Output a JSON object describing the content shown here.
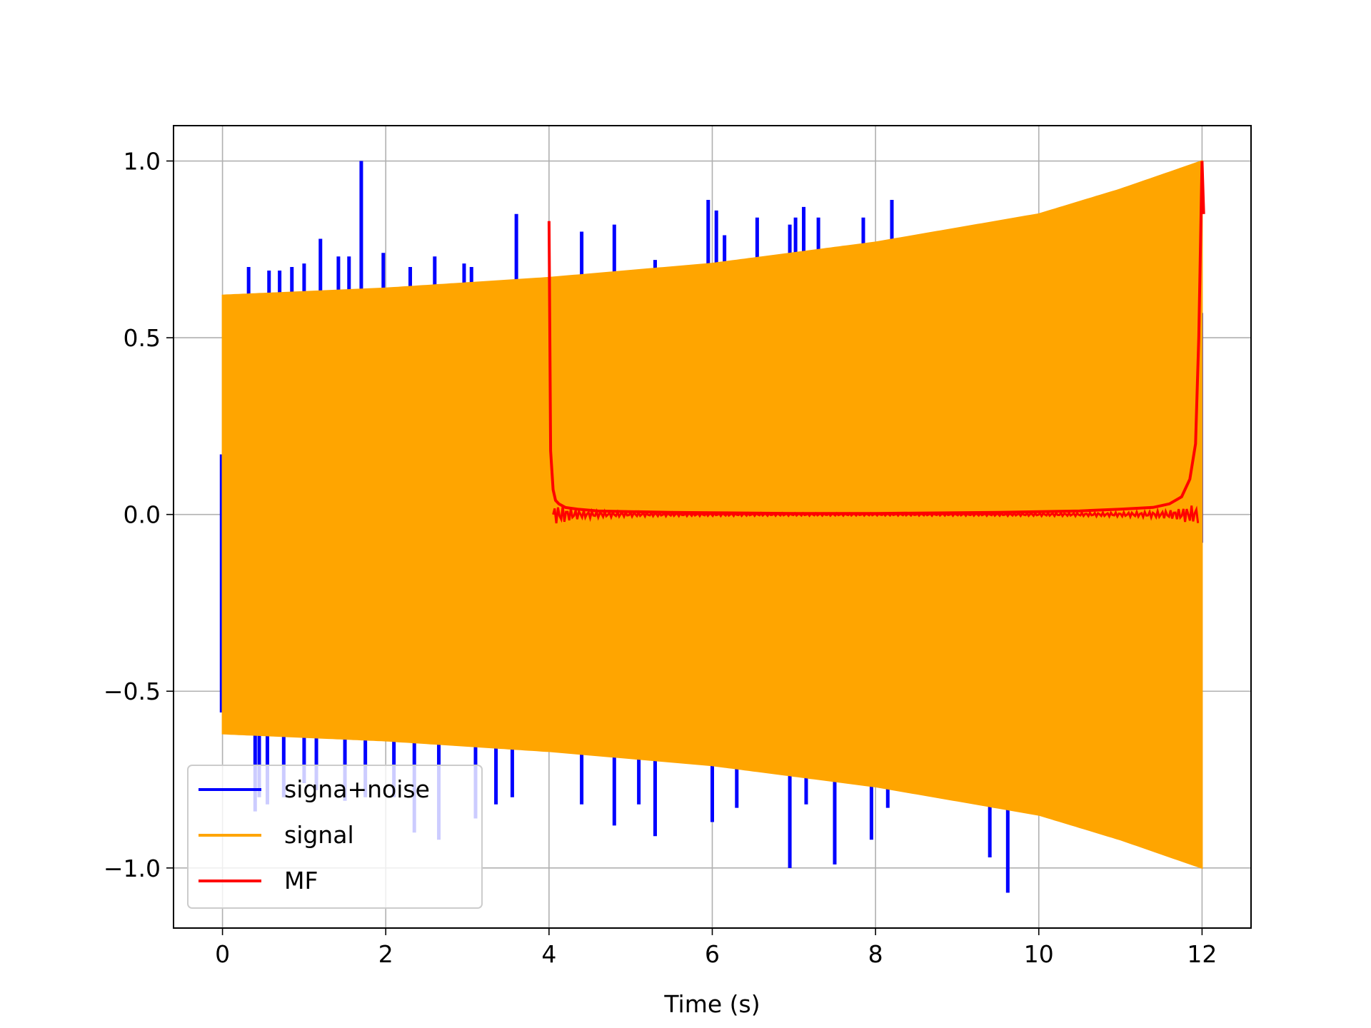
{
  "chart_data": {
    "type": "line",
    "title": "",
    "xlabel": "Time (s)",
    "ylabel": "",
    "xlim": [
      -0.6,
      12.6
    ],
    "ylim": [
      -1.17,
      1.1
    ],
    "grid": true,
    "legend_position": "lower-left",
    "x_ticks": [
      0,
      2,
      4,
      6,
      8,
      10,
      12
    ],
    "x_tick_labels": [
      "0",
      "2",
      "4",
      "6",
      "8",
      "10",
      "12"
    ],
    "y_ticks": [
      1.0,
      0.5,
      0.0,
      -0.5,
      -1.0
    ],
    "y_tick_labels": [
      "1.0",
      "0.5",
      "0.0",
      "−0.5",
      "−1.0"
    ],
    "series": [
      {
        "name": "signa+noise",
        "color": "#0000ff",
        "style": "impulses",
        "x": [
          0.32,
          0.57,
          0.7,
          0.85,
          1.0,
          1.2,
          1.42,
          1.55,
          1.7,
          1.97,
          2.3,
          2.6,
          2.96,
          3.05,
          3.6,
          4.4,
          4.8,
          5.3,
          5.95,
          6.05,
          6.15,
          6.55,
          6.95,
          7.02,
          7.12,
          7.3,
          7.85,
          8.2
        ],
        "y": [
          0.7,
          0.69,
          0.69,
          0.7,
          0.71,
          0.78,
          0.73,
          0.73,
          1.0,
          0.74,
          0.7,
          0.73,
          0.71,
          0.7,
          0.85,
          0.8,
          0.82,
          0.72,
          0.89,
          0.86,
          0.79,
          0.84,
          0.82,
          0.84,
          0.87,
          0.84,
          0.84,
          0.89
        ],
        "x_neg": [
          0.4,
          0.45,
          0.55,
          0.75,
          1.0,
          1.15,
          1.5,
          1.75,
          2.1,
          2.35,
          2.65,
          3.1,
          3.35,
          3.55,
          4.4,
          4.8,
          5.1,
          5.3,
          6.0,
          6.3,
          6.95,
          7.15,
          7.5,
          7.95,
          8.15,
          9.4,
          9.62
        ],
        "y_neg": [
          -0.84,
          -0.8,
          -0.82,
          -0.8,
          -0.76,
          -0.78,
          -0.81,
          -0.8,
          -0.8,
          -0.9,
          -0.92,
          -0.86,
          -0.82,
          -0.8,
          -0.82,
          -0.88,
          -0.82,
          -0.91,
          -0.87,
          -0.83,
          -1.0,
          -0.82,
          -0.99,
          -0.92,
          -0.83,
          -0.97,
          -1.07
        ]
      },
      {
        "name": "signal",
        "color": "#ffa500",
        "style": "oscillating-envelope",
        "x_start": 0,
        "x_end": 12,
        "envelope_x": [
          0,
          2,
          4,
          6,
          8,
          10,
          11,
          12
        ],
        "envelope_y": [
          0.62,
          0.64,
          0.67,
          0.71,
          0.77,
          0.85,
          0.92,
          1.0
        ]
      },
      {
        "name": "MF",
        "color": "#ff0000",
        "style": "line",
        "x": [
          4.0,
          4.02,
          4.05,
          4.08,
          4.12,
          4.2,
          4.35,
          4.6,
          5.0,
          5.5,
          6.0,
          6.5,
          7.0,
          7.5,
          8.0,
          8.5,
          9.0,
          9.5,
          10.0,
          10.5,
          11.0,
          11.4,
          11.6,
          11.75,
          11.85,
          11.92,
          11.96,
          12.0,
          12.02
        ],
        "y": [
          0.83,
          0.18,
          0.07,
          0.04,
          0.03,
          0.02,
          0.015,
          0.01,
          0.008,
          0.006,
          0.005,
          0.004,
          0.003,
          0.003,
          0.003,
          0.004,
          0.005,
          0.006,
          0.008,
          0.01,
          0.015,
          0.02,
          0.03,
          0.05,
          0.1,
          0.2,
          0.5,
          1.0,
          0.85
        ]
      }
    ],
    "legend": {
      "entries": [
        "signa+noise",
        "signal",
        "MF"
      ]
    }
  }
}
